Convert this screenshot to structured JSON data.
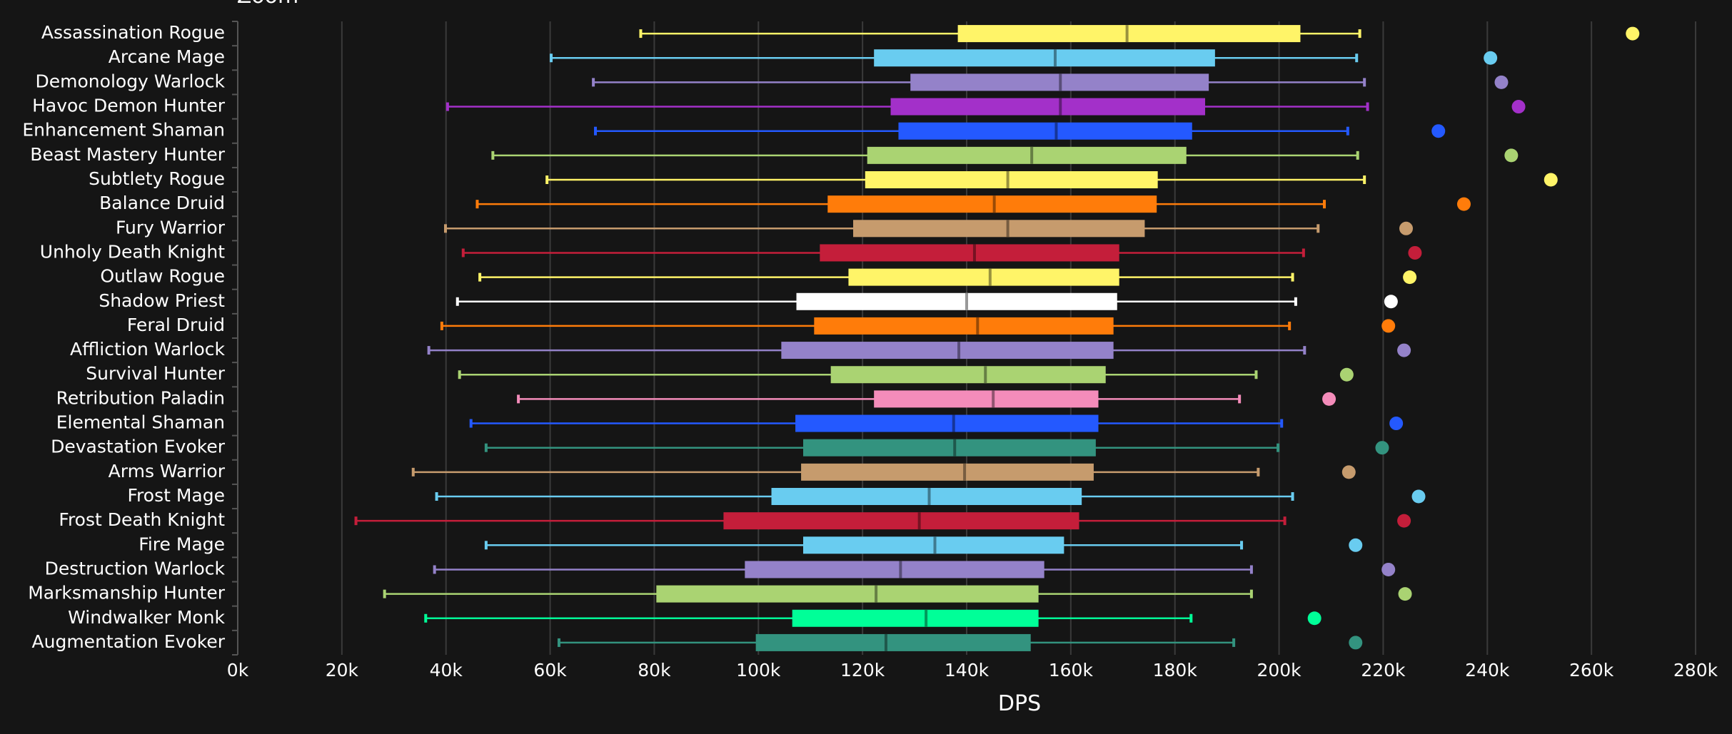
{
  "chart_data": {
    "type": "boxplot",
    "title": "Zoom",
    "xlabel": "DPS",
    "ylabel": "",
    "xlim": [
      0,
      280000
    ],
    "x_ticks": [
      "0k",
      "20k",
      "40k",
      "60k",
      "80k",
      "100k",
      "120k",
      "140k",
      "160k",
      "180k",
      "200k",
      "220k",
      "240k",
      "260k",
      "280k"
    ],
    "grid": "vertical",
    "units": "thousands of DPS",
    "series": [
      {
        "name": "Assassination Rogue",
        "color": "#fff468",
        "min": 77.4,
        "q1": 138.3,
        "median": 170.8,
        "q3": 204.1,
        "max": 215.5,
        "outlier": 267.9
      },
      {
        "name": "Arcane Mage",
        "color": "#69ccf0",
        "min": 60.2,
        "q1": 122.2,
        "median": 157.0,
        "q3": 187.7,
        "max": 214.9,
        "outlier": 240.6
      },
      {
        "name": "Demonology Warlock",
        "color": "#9482c9",
        "min": 68.3,
        "q1": 129.2,
        "median": 158.0,
        "q3": 186.5,
        "max": 216.4,
        "outlier": 242.7
      },
      {
        "name": "Havoc Demon Hunter",
        "color": "#a330c9",
        "min": 40.3,
        "q1": 125.4,
        "median": 158.0,
        "q3": 185.8,
        "max": 217.0,
        "outlier": 246.0
      },
      {
        "name": "Enhancement Shaman",
        "color": "#2459ff",
        "min": 68.7,
        "q1": 126.9,
        "median": 157.2,
        "q3": 183.3,
        "max": 213.2,
        "outlier": 230.6
      },
      {
        "name": "Beast Mastery Hunter",
        "color": "#aad372",
        "min": 49.0,
        "q1": 120.9,
        "median": 152.5,
        "q3": 182.2,
        "max": 215.1,
        "outlier": 244.6
      },
      {
        "name": "Subtlety Rogue",
        "color": "#fff468",
        "min": 59.4,
        "q1": 120.5,
        "median": 147.9,
        "q3": 176.7,
        "max": 216.4,
        "outlier": 252.2
      },
      {
        "name": "Balance Druid",
        "color": "#ff7c0a",
        "min": 46.0,
        "q1": 113.3,
        "median": 145.3,
        "q3": 176.5,
        "max": 208.7,
        "outlier": 235.5
      },
      {
        "name": "Fury Warrior",
        "color": "#c69b6d",
        "min": 39.9,
        "q1": 118.2,
        "median": 147.9,
        "q3": 174.2,
        "max": 207.5,
        "outlier": 224.4
      },
      {
        "name": "Unholy Death Knight",
        "color": "#c41e3a",
        "min": 43.3,
        "q1": 111.8,
        "median": 141.5,
        "q3": 169.3,
        "max": 204.7,
        "outlier": 226.1
      },
      {
        "name": "Outlaw Rogue",
        "color": "#fff468",
        "min": 46.5,
        "q1": 117.3,
        "median": 144.5,
        "q3": 169.3,
        "max": 202.6,
        "outlier": 225.1
      },
      {
        "name": "Shadow Priest",
        "color": "#ffffff",
        "min": 42.2,
        "q1": 107.3,
        "median": 140.0,
        "q3": 168.9,
        "max": 203.2,
        "outlier": 221.5
      },
      {
        "name": "Feral Druid",
        "color": "#ff7c0a",
        "min": 39.2,
        "q1": 110.7,
        "median": 142.1,
        "q3": 168.2,
        "max": 202.0,
        "outlier": 221.0
      },
      {
        "name": "Affliction Warlock",
        "color": "#9482c9",
        "min": 36.7,
        "q1": 104.4,
        "median": 138.5,
        "q3": 168.2,
        "max": 204.9,
        "outlier": 224.0
      },
      {
        "name": "Survival Hunter",
        "color": "#aad372",
        "min": 42.6,
        "q1": 113.9,
        "median": 143.6,
        "q3": 166.7,
        "max": 195.6,
        "outlier": 213.0
      },
      {
        "name": "Retribution Paladin",
        "color": "#f48cba",
        "min": 53.9,
        "q1": 122.2,
        "median": 145.1,
        "q3": 165.3,
        "max": 192.4,
        "outlier": 209.6
      },
      {
        "name": "Elemental Shaman",
        "color": "#2459ff",
        "min": 44.8,
        "q1": 107.1,
        "median": 137.5,
        "q3": 165.3,
        "max": 200.5,
        "outlier": 222.5
      },
      {
        "name": "Devastation Evoker",
        "color": "#33937f",
        "min": 47.7,
        "q1": 108.6,
        "median": 137.7,
        "q3": 164.8,
        "max": 199.8,
        "outlier": 219.8
      },
      {
        "name": "Arms Warrior",
        "color": "#c69b6d",
        "min": 33.7,
        "q1": 108.2,
        "median": 139.6,
        "q3": 164.4,
        "max": 196.0,
        "outlier": 213.4
      },
      {
        "name": "Frost Mage",
        "color": "#69ccf0",
        "min": 38.2,
        "q1": 102.5,
        "median": 132.8,
        "q3": 162.1,
        "max": 202.6,
        "outlier": 226.8
      },
      {
        "name": "Frost Death Knight",
        "color": "#c41e3a",
        "min": 22.7,
        "q1": 93.3,
        "median": 130.9,
        "q3": 161.6,
        "max": 201.1,
        "outlier": 224.0
      },
      {
        "name": "Fire Mage",
        "color": "#69ccf0",
        "min": 47.7,
        "q1": 108.6,
        "median": 133.9,
        "q3": 158.7,
        "max": 192.8,
        "outlier": 214.7
      },
      {
        "name": "Destruction Warlock",
        "color": "#9482c9",
        "min": 37.8,
        "q1": 97.4,
        "median": 127.3,
        "q3": 154.9,
        "max": 194.7,
        "outlier": 221.0
      },
      {
        "name": "Marksmanship Hunter",
        "color": "#aad372",
        "min": 28.2,
        "q1": 80.4,
        "median": 122.6,
        "q3": 153.8,
        "max": 194.7,
        "outlier": 224.2
      },
      {
        "name": "Windwalker Monk",
        "color": "#00ff98",
        "min": 36.1,
        "q1": 106.5,
        "median": 132.2,
        "q3": 153.8,
        "max": 183.1,
        "outlier": 206.8
      },
      {
        "name": "Augmentation Evoker",
        "color": "#33937f",
        "min": 61.7,
        "q1": 99.5,
        "median": 124.5,
        "q3": 152.3,
        "max": 191.3,
        "outlier": 214.7
      }
    ]
  }
}
